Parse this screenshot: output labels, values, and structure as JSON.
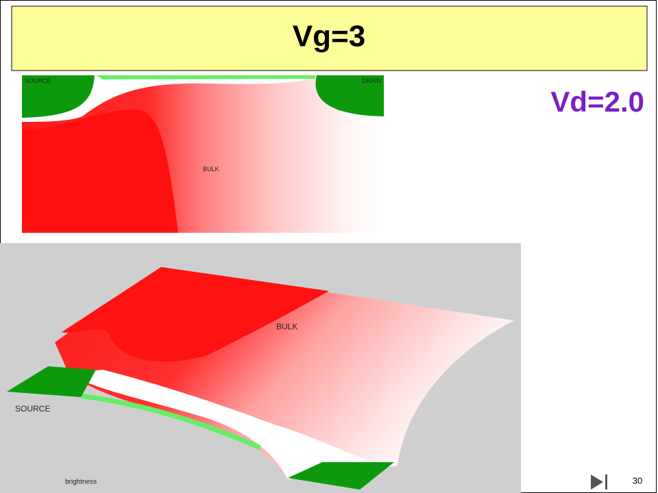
{
  "header": {
    "title": "Vg=3"
  },
  "subtitle": "Vd=2.0",
  "top_image": {
    "source_label": "SOURCE",
    "drain_label": "DRAIN",
    "bulk_label": "BULK"
  },
  "bottom_image": {
    "bulk_label": "BULK",
    "source_label": "SOURCE",
    "caption": "brightness"
  },
  "page_number": "30"
}
